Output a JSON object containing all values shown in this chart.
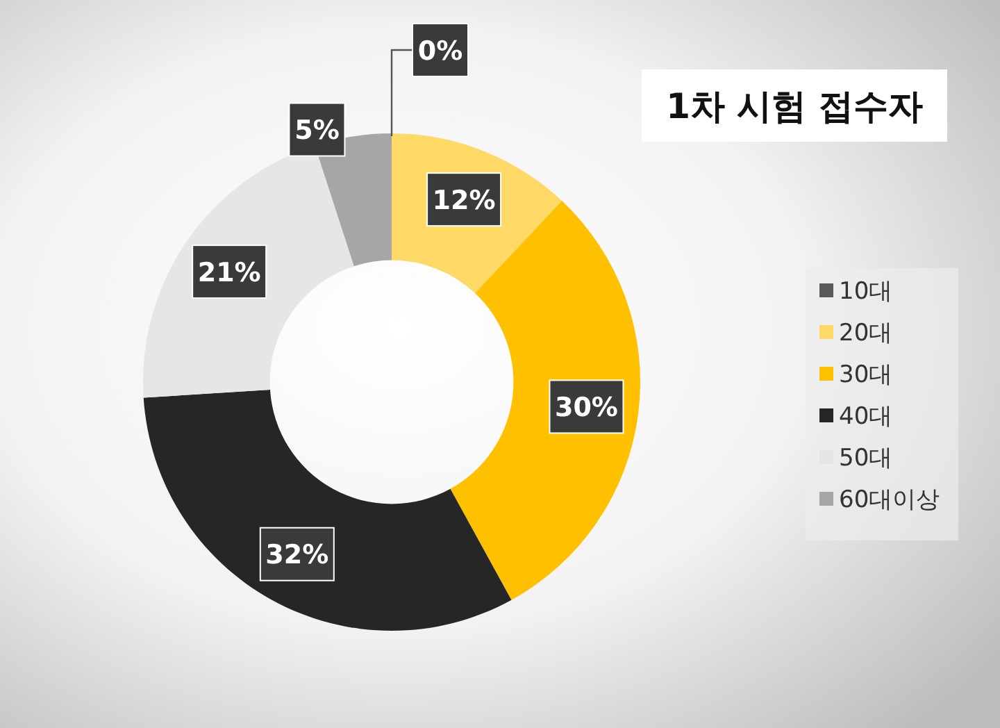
{
  "chart_data": {
    "type": "donut",
    "title": "1차 시험 접수자",
    "categories": [
      "10대",
      "20대",
      "30대",
      "40대",
      "50대",
      "60대이상"
    ],
    "values": [
      0,
      12,
      30,
      32,
      21,
      5
    ],
    "colors": [
      "#595959",
      "#ffd966",
      "#ffc000",
      "#262626",
      "#e7e6e6",
      "#a6a6a6"
    ],
    "value_labels": [
      "0%",
      "12%",
      "30%",
      "32%",
      "21%",
      "5%"
    ],
    "legend": "right"
  }
}
